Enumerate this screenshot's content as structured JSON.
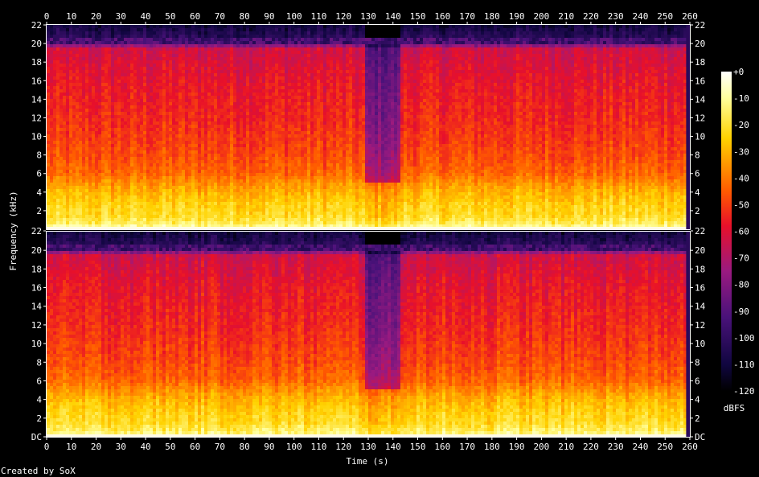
{
  "chart_data": {
    "type": "heatmap",
    "title": "",
    "xlabel": "Time (s)",
    "ylabel": "Frequency (kHz)",
    "xlim": [
      0,
      260
    ],
    "ylim_khz": [
      0,
      22
    ],
    "x_ticks": [
      0,
      10,
      20,
      30,
      40,
      50,
      60,
      70,
      80,
      90,
      100,
      110,
      120,
      130,
      140,
      150,
      160,
      170,
      180,
      190,
      200,
      210,
      220,
      230,
      240,
      250,
      260
    ],
    "y_ticks": [
      "DC",
      "2",
      "4",
      "6",
      "8",
      "10",
      "12",
      "14",
      "16",
      "18",
      "20",
      "22"
    ],
    "channels": 2,
    "audio_end_s": 258.5,
    "colorbar": {
      "unit_label": "dBFS",
      "range_db": [
        -120,
        0
      ],
      "ticks": [
        "+0",
        "-10",
        "-20",
        "-30",
        "-40",
        "-50",
        "-60",
        "-70",
        "-80",
        "-90",
        "-100",
        "-110",
        "-120"
      ],
      "stops": [
        {
          "db": 0,
          "color": "#ffffff"
        },
        {
          "db": -10,
          "color": "#ffff9c"
        },
        {
          "db": -25,
          "color": "#ffd200"
        },
        {
          "db": -45,
          "color": "#ff5a00"
        },
        {
          "db": -58,
          "color": "#e8102a"
        },
        {
          "db": -75,
          "color": "#9a1a80"
        },
        {
          "db": -92,
          "color": "#4a127a"
        },
        {
          "db": -110,
          "color": "#100640"
        },
        {
          "db": -120,
          "color": "#000000"
        }
      ]
    },
    "spectral_profile_db": [
      {
        "khz": 0,
        "db": -3
      },
      {
        "khz": 0.5,
        "db": -15
      },
      {
        "khz": 1.5,
        "db": -22
      },
      {
        "khz": 2.5,
        "db": -24
      },
      {
        "khz": 4,
        "db": -30
      },
      {
        "khz": 5,
        "db": -36
      },
      {
        "khz": 6,
        "db": -43
      },
      {
        "khz": 8,
        "db": -48
      },
      {
        "khz": 12,
        "db": -54
      },
      {
        "khz": 16,
        "db": -58
      },
      {
        "khz": 19.5,
        "db": -64
      },
      {
        "khz": 20.2,
        "db": -100
      },
      {
        "khz": 22,
        "db": -110
      }
    ],
    "quiet_section": {
      "start_s": 129,
      "end_s": 143
    },
    "credit": "Created by SoX"
  }
}
